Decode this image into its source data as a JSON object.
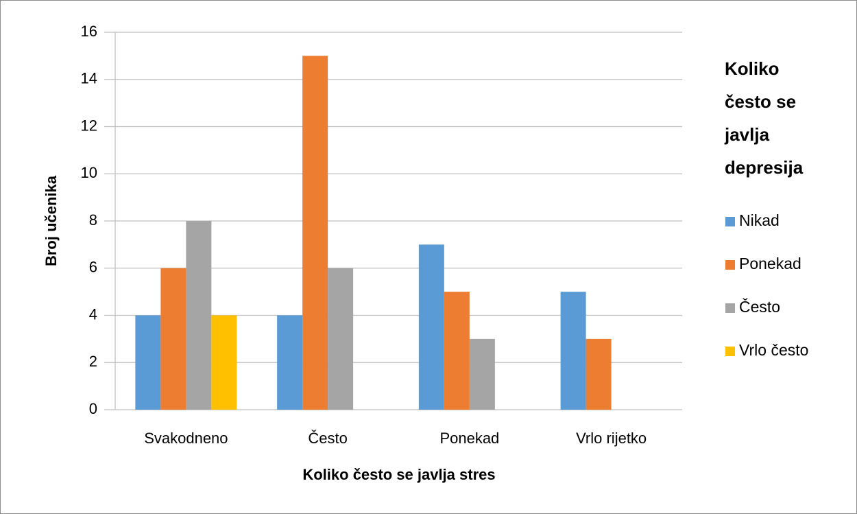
{
  "chart_data": {
    "type": "bar",
    "x_label": "Koliko često se javlja stres",
    "y_label": "Broj učenika",
    "legend_title": "Koliko često se javlja depresija",
    "categories": [
      "Svakodneno",
      "Često",
      "Ponekad",
      "Vrlo rijetko"
    ],
    "series": [
      {
        "name": "Nikad",
        "color": "#5b9bd5",
        "values": [
          4,
          4,
          7,
          5
        ]
      },
      {
        "name": "Ponekad",
        "color": "#ed7d31",
        "values": [
          6,
          15,
          5,
          3
        ]
      },
      {
        "name": "Često",
        "color": "#a5a5a5",
        "values": [
          8,
          6,
          3,
          0
        ]
      },
      {
        "name": "Vrlo često",
        "color": "#ffc000",
        "values": [
          4,
          0,
          0,
          0
        ]
      }
    ],
    "ylim": [
      0,
      16
    ],
    "yticks": [
      0,
      2,
      4,
      6,
      8,
      10,
      12,
      14,
      16
    ],
    "grid": true,
    "legend": "right"
  }
}
